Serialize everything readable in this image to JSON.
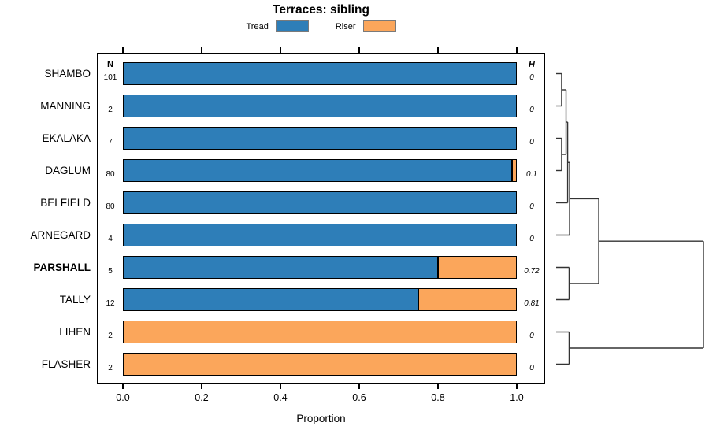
{
  "title": "Terraces: sibling",
  "legend": {
    "items": [
      {
        "label": "Tread",
        "color": "#2E7EB8"
      },
      {
        "label": "Riser",
        "color": "#FBA65B"
      }
    ]
  },
  "columns": {
    "n_header": "N",
    "h_header": "H"
  },
  "colors": {
    "tread": "#2E7EB8",
    "riser": "#FBA65B",
    "bar_border": "#000000",
    "box_border": "#000000",
    "dendrogram_line": "#333333",
    "legend_swatch_border": "#7a7a7a"
  },
  "chart_data": {
    "type": "bar",
    "orientation": "horizontal",
    "stacked": true,
    "title": "Terraces: sibling",
    "xlabel": "Proportion",
    "xlim": [
      0,
      1
    ],
    "x_ticks": [
      "0.0",
      "0.2",
      "0.4",
      "0.6",
      "0.8",
      "1.0"
    ],
    "grid": false,
    "legend_position": "top",
    "series_names": [
      "Tread",
      "Riser"
    ],
    "categories": [
      "SHAMBO",
      "MANNING",
      "EKALAKA",
      "DAGLUM",
      "BELFIELD",
      "ARNEGARD",
      "PARSHALL",
      "TALLY",
      "LIHEN",
      "FLASHER"
    ],
    "rows": [
      {
        "label": "SHAMBO",
        "bold": false,
        "n": "101",
        "tread": 1.0,
        "riser": 0.0,
        "h": "0"
      },
      {
        "label": "MANNING",
        "bold": false,
        "n": "2",
        "tread": 1.0,
        "riser": 0.0,
        "h": "0"
      },
      {
        "label": "EKALAKA",
        "bold": false,
        "n": "7",
        "tread": 1.0,
        "riser": 0.0,
        "h": "0"
      },
      {
        "label": "DAGLUM",
        "bold": false,
        "n": "80",
        "tread": 0.987,
        "riser": 0.013,
        "h": "0.1"
      },
      {
        "label": "BELFIELD",
        "bold": false,
        "n": "80",
        "tread": 1.0,
        "riser": 0.0,
        "h": "0"
      },
      {
        "label": "ARNEGARD",
        "bold": false,
        "n": "4",
        "tread": 1.0,
        "riser": 0.0,
        "h": "0"
      },
      {
        "label": "PARSHALL",
        "bold": true,
        "n": "5",
        "tread": 0.8,
        "riser": 0.2,
        "h": "0.72"
      },
      {
        "label": "TALLY",
        "bold": false,
        "n": "12",
        "tread": 0.75,
        "riser": 0.25,
        "h": "0.81"
      },
      {
        "label": "LIHEN",
        "bold": false,
        "n": "2",
        "tread": 0.0,
        "riser": 1.0,
        "h": "0"
      },
      {
        "label": "FLASHER",
        "bold": false,
        "n": "2",
        "tread": 0.0,
        "riser": 1.0,
        "h": "0"
      }
    ],
    "dendrogram": {
      "leaf_order": [
        "SHAMBO",
        "MANNING",
        "EKALAKA",
        "DAGLUM",
        "BELFIELD",
        "ARNEGARD",
        "PARSHALL",
        "TALLY",
        "LIHEN",
        "FLASHER"
      ],
      "merges": [
        {
          "id": "m1",
          "a": "SHAMBO",
          "b": "MANNING",
          "h": 0.037
        },
        {
          "id": "m2",
          "a": "EKALAKA",
          "b": "DAGLUM",
          "h": 0.037
        },
        {
          "id": "m3",
          "a": "m1",
          "b": "m2",
          "h": 0.067
        },
        {
          "id": "m4",
          "a": "m3",
          "b": "BELFIELD",
          "h": 0.078
        },
        {
          "id": "m5",
          "a": "m4",
          "b": "ARNEGARD",
          "h": 0.091
        },
        {
          "id": "m6",
          "a": "PARSHALL",
          "b": "TALLY",
          "h": 0.088
        },
        {
          "id": "m7",
          "a": "m5",
          "b": "m6",
          "h": 0.289
        },
        {
          "id": "m8",
          "a": "LIHEN",
          "b": "FLASHER",
          "h": 0.088
        },
        {
          "id": "m9",
          "a": "m7",
          "b": "m8",
          "h": 1.0
        }
      ]
    }
  }
}
